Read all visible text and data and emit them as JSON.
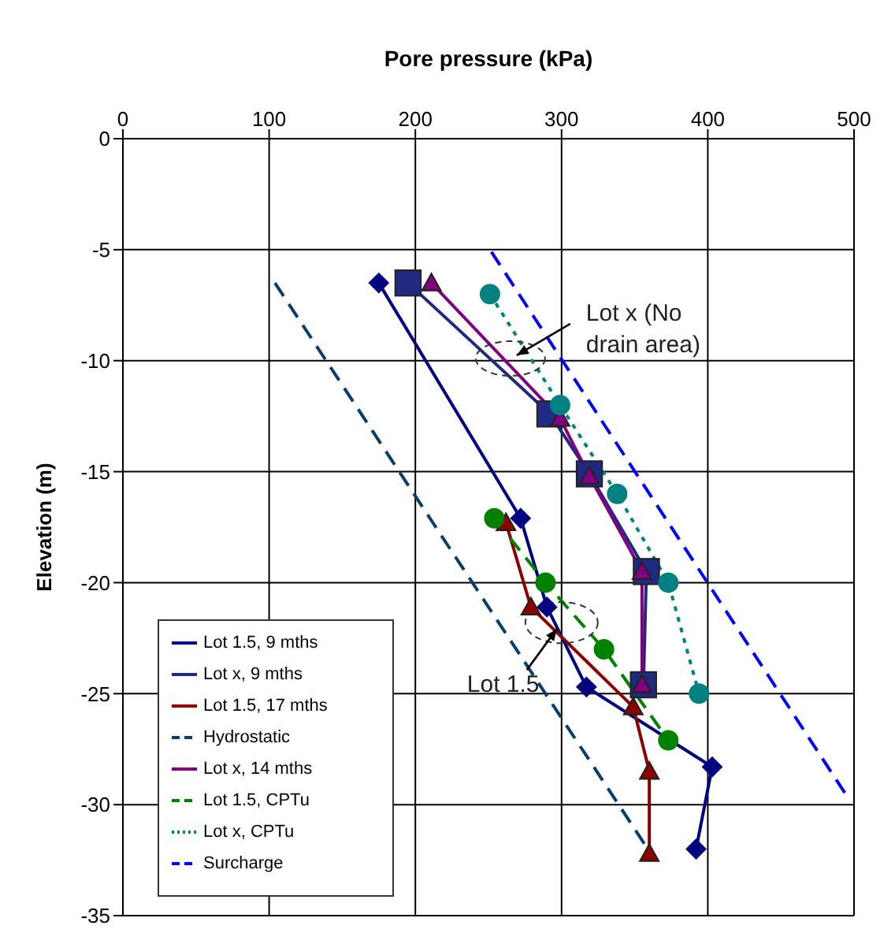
{
  "chart_data": {
    "type": "line",
    "xlabel": "Pore pressure (kPa)",
    "ylabel": "Elevation (m)",
    "xlim": [
      0,
      500
    ],
    "xticks": [
      0,
      100,
      200,
      300,
      400,
      500
    ],
    "ylim": [
      -35,
      0
    ],
    "yticks": [
      -35,
      -30,
      -25,
      -20,
      -15,
      -10,
      -5,
      0
    ],
    "grid": true,
    "legend": "bottom left",
    "series": [
      {
        "name": "Lot 1.5, 9 mths",
        "color": "#000080",
        "marker": "diamond",
        "line_style": "solid",
        "x": [
          175,
          272,
          290,
          317,
          403,
          392
        ],
        "values": [
          -6.5,
          -17.1,
          -21.1,
          -24.7,
          -28.3,
          -32
        ]
      },
      {
        "name": "Lot x, 9 mths",
        "color": "#1f2a80",
        "marker": "square",
        "line_style": "solid",
        "x": [
          195,
          292,
          319,
          358,
          356
        ],
        "values": [
          -6.5,
          -12.4,
          -15.1,
          -19.5,
          -24.6
        ]
      },
      {
        "name": "Lot 1.5, 17 mths",
        "color": "#8b0000",
        "marker": "triangle",
        "line_style": "solid",
        "x": [
          262,
          279,
          349,
          360,
          360
        ],
        "values": [
          -17.3,
          -21.1,
          -25.6,
          -28.5,
          -32.2
        ]
      },
      {
        "name": "Hydrostatic",
        "color": "#0b3d6b",
        "marker": "none",
        "line_style": "dashed",
        "x": [
          104,
          359
        ],
        "values": [
          -6.5,
          -32
        ]
      },
      {
        "name": "Lot x, 14 mths",
        "color": "#800080",
        "marker": "triangle",
        "line_style": "solid",
        "x": [
          211,
          299,
          319,
          355,
          355
        ],
        "values": [
          -6.5,
          -12.6,
          -15.2,
          -19.5,
          -24.6
        ]
      },
      {
        "name": "Lot 1.5, CPTu",
        "color": "#008000",
        "marker": "circle",
        "line_style": "dashed",
        "x": [
          254,
          289,
          329,
          373
        ],
        "values": [
          -17.1,
          -20,
          -23,
          -27.1
        ]
      },
      {
        "name": "Lot x, CPTu",
        "color": "#008080",
        "marker": "circle",
        "line_style": "dotted",
        "x": [
          251,
          299,
          338,
          373,
          394
        ],
        "values": [
          -7,
          -12,
          -16,
          -20,
          -25
        ]
      },
      {
        "name": "Surcharge",
        "color": "#0000ff",
        "marker": "none",
        "line_style": "dashed",
        "x": [
          252,
          495
        ],
        "values": [
          -5.1,
          -29.6
        ]
      }
    ],
    "annotations": [
      {
        "text": "Lot x (No drain area)",
        "x": 265,
        "y": -9.9
      },
      {
        "text": "Lot 1.5",
        "x": 300,
        "y": -21.8
      }
    ]
  }
}
